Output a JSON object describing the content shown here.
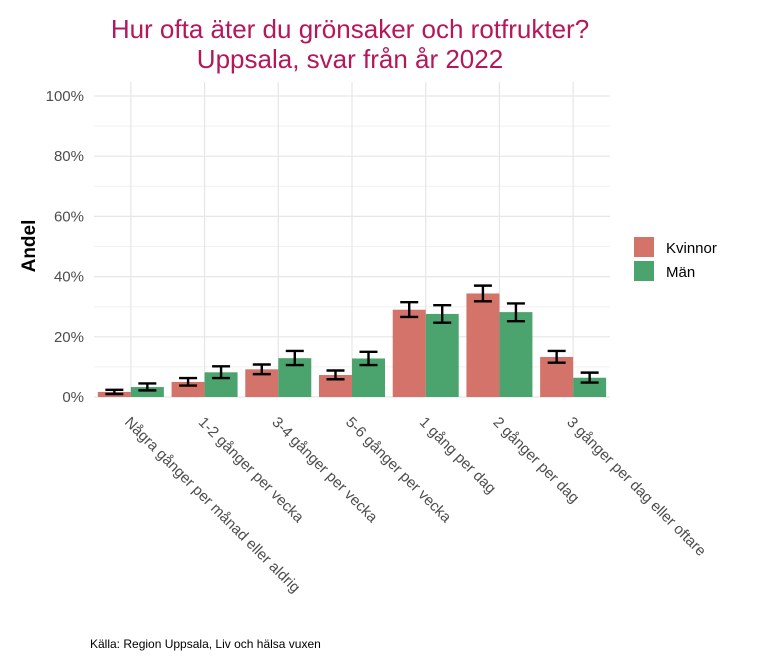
{
  "chart_data": {
    "type": "bar",
    "title": "Hur ofta äter du grönsaker och rotfrukter?",
    "subtitle": "Uppsala, svar från år 2022",
    "xlabel": "",
    "ylabel": "Andel",
    "ylim": [
      0,
      100
    ],
    "yticks": [
      "0%",
      "20%",
      "40%",
      "60%",
      "80%",
      "100%"
    ],
    "ytick_values": [
      0,
      20,
      40,
      60,
      80,
      100
    ],
    "grid": true,
    "legend_position": "right",
    "categories": [
      "Några gånger per månad eller aldrig",
      "1-2 gånger per vecka",
      "3-4 gånger per vecka",
      "5-6 gånger per vecka",
      "1 gång per dag",
      "2 gånger per dag",
      "3 gånger per dag eller oftare"
    ],
    "series": [
      {
        "name": "Kvinnor",
        "color": "#d4736a",
        "values": [
          1.7,
          5.0,
          9.2,
          7.3,
          29.0,
          34.4,
          13.3
        ],
        "ci_low": [
          1.0,
          3.8,
          7.6,
          5.9,
          26.6,
          31.8,
          11.4
        ],
        "ci_high": [
          2.4,
          6.3,
          10.8,
          8.8,
          31.5,
          37.0,
          15.3
        ]
      },
      {
        "name": "Män",
        "color": "#4ba36e",
        "values": [
          3.3,
          8.2,
          12.9,
          12.8,
          27.6,
          28.2,
          6.4
        ],
        "ci_low": [
          2.2,
          6.3,
          10.6,
          10.6,
          24.7,
          25.2,
          4.8
        ],
        "ci_high": [
          4.5,
          10.2,
          15.3,
          15.0,
          30.5,
          31.1,
          8.1
        ]
      }
    ],
    "caption": "Källa: Region Uppsala, Liv och hälsa vuxen",
    "title_color": "#b5175b"
  }
}
